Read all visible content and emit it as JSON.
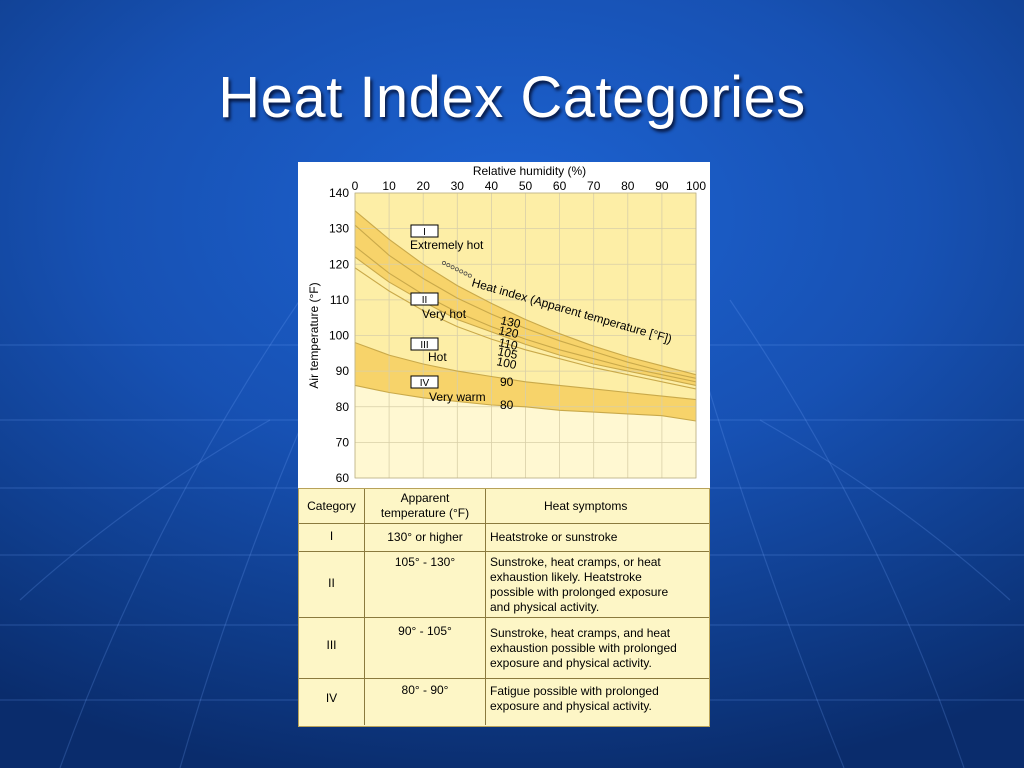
{
  "slide": {
    "title": "Heat Index Categories",
    "background_colors": [
      "#1d63d2",
      "#0a2c6c"
    ]
  },
  "chart_data": {
    "type": "line",
    "title": "",
    "xlabel": "Relative humidity (%)",
    "ylabel": "Air temperature (°F)",
    "xlim": [
      0,
      100
    ],
    "ylim": [
      60,
      140
    ],
    "xticks": [
      0,
      10,
      20,
      30,
      40,
      50,
      60,
      70,
      80,
      90,
      100
    ],
    "yticks": [
      60,
      70,
      80,
      90,
      100,
      110,
      120,
      130,
      140
    ],
    "x_axis_position": "top",
    "grid": true,
    "annotation": "Heat index  (Apparent temperature [°F])",
    "series": [
      {
        "name": "130",
        "x": [
          0,
          10,
          20,
          30,
          40,
          50,
          60,
          70,
          80,
          90,
          100
        ],
        "y": [
          135,
          127,
          120,
          114,
          109,
          104.5,
          100.5,
          97,
          94,
          91.5,
          89
        ]
      },
      {
        "name": "120",
        "x": [
          0,
          10,
          20,
          30,
          40,
          50,
          60,
          70,
          80,
          90,
          100
        ],
        "y": [
          131,
          122.5,
          116,
          110.5,
          106,
          102,
          98.5,
          95.5,
          92.5,
          90,
          88
        ]
      },
      {
        "name": "110",
        "x": [
          0,
          10,
          20,
          30,
          40,
          50,
          60,
          70,
          80,
          90,
          100
        ],
        "y": [
          125,
          117.5,
          111.5,
          106.5,
          102.5,
          99,
          96,
          93.5,
          91,
          89,
          87
        ]
      },
      {
        "name": "105",
        "x": [
          0,
          10,
          20,
          30,
          40,
          50,
          60,
          70,
          80,
          90,
          100
        ],
        "y": [
          122,
          115,
          109.5,
          104.5,
          101,
          97.5,
          94.5,
          92,
          90,
          88,
          86
        ]
      },
      {
        "name": "100",
        "x": [
          0,
          10,
          20,
          30,
          40,
          50,
          60,
          70,
          80,
          90,
          100
        ],
        "y": [
          119,
          112.5,
          107,
          102.5,
          99,
          96,
          93.5,
          91,
          89,
          87,
          85
        ]
      },
      {
        "name": "90",
        "x": [
          0,
          10,
          20,
          30,
          40,
          50,
          60,
          70,
          80,
          90,
          100
        ],
        "y": [
          98,
          94.5,
          92,
          90,
          88.5,
          87,
          86,
          85,
          84,
          83,
          82
        ]
      },
      {
        "name": "80",
        "x": [
          0,
          10,
          20,
          30,
          40,
          50,
          60,
          70,
          80,
          90,
          100
        ],
        "y": [
          86,
          84,
          82.5,
          81.5,
          80.5,
          80,
          79,
          78.5,
          78,
          77.5,
          76
        ]
      }
    ],
    "category_labels": [
      {
        "roman": "I",
        "label": "Extremely hot"
      },
      {
        "roman": "II",
        "label": "Very hot"
      },
      {
        "roman": "III",
        "label": "Hot"
      },
      {
        "roman": "IV",
        "label": "Very warm"
      }
    ],
    "band_colors": {
      "dark": "#f7d36a",
      "light": "#fdeea6",
      "pale": "#fff8d2",
      "line": "#c9a94a"
    }
  },
  "table": {
    "headers": {
      "category": "Category",
      "apparent_line1": "Apparent",
      "apparent_line2": "temperature (°F)",
      "symptoms": "Heat symptoms"
    },
    "rows": [
      {
        "category": "I",
        "range": "130° or higher",
        "symptoms": [
          "Heatstroke or sunstroke"
        ]
      },
      {
        "category": "II",
        "range": "105° - 130°",
        "symptoms": [
          "Sunstroke, heat cramps, or heat",
          "exhaustion likely. Heatstroke",
          "possible with prolonged exposure",
          "and physical activity."
        ]
      },
      {
        "category": "III",
        "range": "90° - 105°",
        "symptoms": [
          "Sunstroke, heat cramps, and heat",
          "exhaustion possible with prolonged",
          "exposure and physical activity."
        ]
      },
      {
        "category": "IV",
        "range": "80° - 90°",
        "symptoms": [
          "Fatigue possible with prolonged",
          "exposure and physical activity."
        ]
      }
    ]
  }
}
